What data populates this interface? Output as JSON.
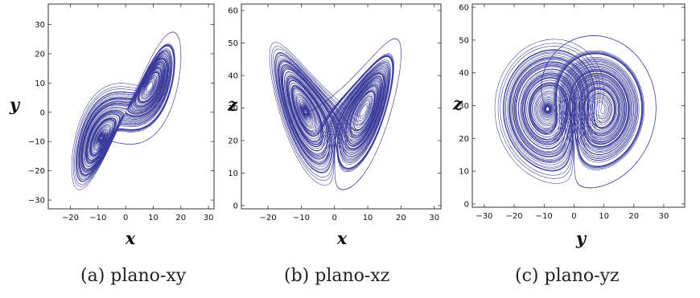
{
  "chart_data": [
    {
      "type": "line",
      "caption": "(a) plano-xy",
      "xlabel": "x",
      "ylabel": "y",
      "xlim": [
        -28,
        32
      ],
      "ylim": [
        -33,
        37
      ],
      "xticks": [
        -20,
        -10,
        0,
        10,
        20,
        30
      ],
      "yticks": [
        -30,
        -20,
        -10,
        0,
        10,
        20,
        30
      ],
      "series": [
        {
          "x_variable": "x",
          "y_variable": "y",
          "color": "#3b3b9a"
        }
      ]
    },
    {
      "type": "line",
      "caption": "(b) plano-xz",
      "xlabel": "x",
      "ylabel": "z",
      "xlim": [
        -28,
        32
      ],
      "ylim": [
        -1,
        62
      ],
      "xticks": [
        -20,
        -10,
        0,
        10,
        20,
        30
      ],
      "yticks": [
        0,
        10,
        20,
        30,
        40,
        50,
        60
      ],
      "series": [
        {
          "x_variable": "x",
          "y_variable": "z",
          "color": "#3b3b9a"
        }
      ]
    },
    {
      "type": "line",
      "caption": "(c) plano-yz",
      "xlabel": "y",
      "ylabel": "z",
      "xlim": [
        -34,
        37
      ],
      "ylim": [
        -1,
        61
      ],
      "xticks": [
        -30,
        -20,
        -10,
        0,
        10,
        20,
        30
      ],
      "yticks": [
        0,
        10,
        20,
        30,
        40,
        50,
        60
      ],
      "series": [
        {
          "x_variable": "y",
          "y_variable": "z",
          "color": "#3b3b9a"
        }
      ]
    }
  ]
}
